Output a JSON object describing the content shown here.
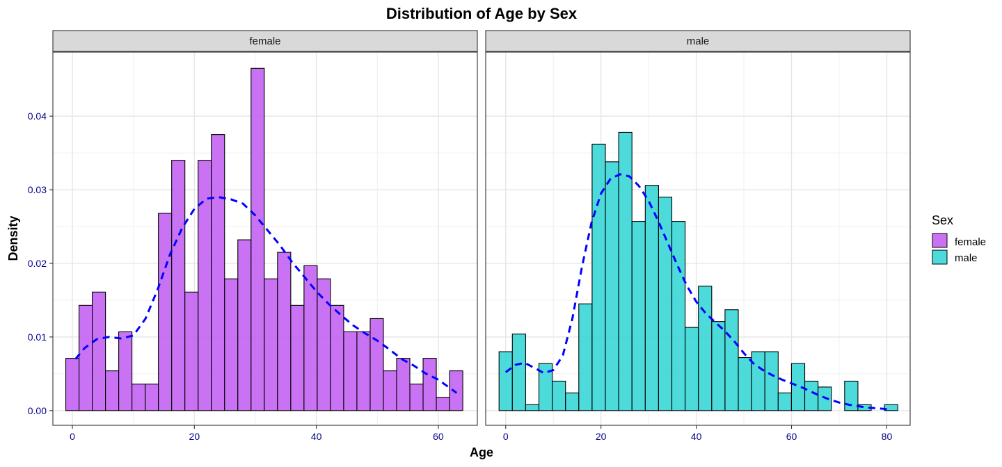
{
  "chart_data": {
    "type": "histogram",
    "title": "Distribution of Age by Sex",
    "xlabel": "Age",
    "ylabel": "Density",
    "grid": true,
    "legend_position": "right",
    "legend": {
      "title": "Sex",
      "entries": [
        {
          "label": "female",
          "color": "#bf5af2"
        },
        {
          "label": "male",
          "color": "#2ed3d3"
        }
      ]
    },
    "density_curve_color": "#0000ff",
    "bar_outline_color": "#000000",
    "y_ticks": [
      0.0,
      0.01,
      0.02,
      0.03,
      0.04
    ],
    "y_tick_labels": [
      "0.00",
      "0.01",
      "0.02",
      "0.03",
      "0.04"
    ],
    "ylim": [
      -0.002,
      0.0487
    ],
    "panels": [
      {
        "strip_label": "female",
        "color": "#bf5af2",
        "xlim": [
          -3.2,
          66.4
        ],
        "x_ticks": [
          0,
          20,
          40,
          60
        ],
        "bin_width": 2.17,
        "bins": [
          {
            "x": 0.0,
            "density": 0.0071
          },
          {
            "x": 2.17,
            "density": 0.0143
          },
          {
            "x": 4.34,
            "density": 0.0161
          },
          {
            "x": 6.51,
            "density": 0.0054
          },
          {
            "x": 8.68,
            "density": 0.0107
          },
          {
            "x": 10.85,
            "density": 0.0036
          },
          {
            "x": 13.02,
            "density": 0.0036
          },
          {
            "x": 15.19,
            "density": 0.0268
          },
          {
            "x": 17.36,
            "density": 0.034
          },
          {
            "x": 19.53,
            "density": 0.0161
          },
          {
            "x": 21.7,
            "density": 0.034
          },
          {
            "x": 23.87,
            "density": 0.0375
          },
          {
            "x": 26.04,
            "density": 0.0179
          },
          {
            "x": 28.21,
            "density": 0.0232
          },
          {
            "x": 30.38,
            "density": 0.0465
          },
          {
            "x": 32.55,
            "density": 0.0179
          },
          {
            "x": 34.72,
            "density": 0.0215
          },
          {
            "x": 36.89,
            "density": 0.0143
          },
          {
            "x": 39.06,
            "density": 0.0197
          },
          {
            "x": 41.23,
            "density": 0.0179
          },
          {
            "x": 43.4,
            "density": 0.0143
          },
          {
            "x": 45.57,
            "density": 0.0107
          },
          {
            "x": 47.74,
            "density": 0.0107
          },
          {
            "x": 49.91,
            "density": 0.0125
          },
          {
            "x": 52.08,
            "density": 0.0054
          },
          {
            "x": 54.25,
            "density": 0.0071
          },
          {
            "x": 56.42,
            "density": 0.0036
          },
          {
            "x": 58.59,
            "density": 0.0071
          },
          {
            "x": 60.76,
            "density": 0.0018
          },
          {
            "x": 62.93,
            "density": 0.0054
          }
        ],
        "density_curve": {
          "x": [
            0.5,
            2,
            4,
            6,
            8,
            10,
            12,
            14,
            16,
            18,
            20,
            22,
            24,
            26,
            28,
            30,
            32,
            34,
            36,
            38,
            40,
            42,
            44,
            46,
            48,
            50,
            52,
            54,
            56,
            58,
            60,
            62,
            63
          ],
          "y": [
            0.007,
            0.0085,
            0.0097,
            0.01,
            0.0098,
            0.0102,
            0.0125,
            0.0165,
            0.0212,
            0.0248,
            0.0274,
            0.0288,
            0.029,
            0.0287,
            0.0281,
            0.0265,
            0.0245,
            0.0225,
            0.0202,
            0.0182,
            0.0162,
            0.0145,
            0.013,
            0.0116,
            0.0105,
            0.0095,
            0.0083,
            0.007,
            0.0061,
            0.005,
            0.0042,
            0.003,
            0.0024
          ]
        }
      },
      {
        "strip_label": "male",
        "color": "#2ed3d3",
        "xlim": [
          -4.2,
          84.9
        ],
        "x_ticks": [
          0,
          20,
          40,
          60,
          80
        ],
        "bin_width": 2.79,
        "bins": [
          {
            "x": 0.0,
            "density": 0.008
          },
          {
            "x": 2.79,
            "density": 0.0104
          },
          {
            "x": 5.58,
            "density": 0.0008
          },
          {
            "x": 8.37,
            "density": 0.0064
          },
          {
            "x": 11.16,
            "density": 0.004
          },
          {
            "x": 13.95,
            "density": 0.0024
          },
          {
            "x": 16.74,
            "density": 0.0145
          },
          {
            "x": 19.53,
            "density": 0.0362
          },
          {
            "x": 22.32,
            "density": 0.0338
          },
          {
            "x": 25.11,
            "density": 0.0378
          },
          {
            "x": 27.9,
            "density": 0.0257
          },
          {
            "x": 30.69,
            "density": 0.0306
          },
          {
            "x": 33.48,
            "density": 0.029
          },
          {
            "x": 36.27,
            "density": 0.0257
          },
          {
            "x": 39.06,
            "density": 0.0113
          },
          {
            "x": 41.85,
            "density": 0.0169
          },
          {
            "x": 44.64,
            "density": 0.0121
          },
          {
            "x": 47.43,
            "density": 0.0137
          },
          {
            "x": 50.22,
            "density": 0.0072
          },
          {
            "x": 53.01,
            "density": 0.008
          },
          {
            "x": 55.8,
            "density": 0.008
          },
          {
            "x": 58.59,
            "density": 0.0024
          },
          {
            "x": 61.38,
            "density": 0.0064
          },
          {
            "x": 64.17,
            "density": 0.004
          },
          {
            "x": 66.96,
            "density": 0.0032
          },
          {
            "x": 69.75,
            "density": 0.0
          },
          {
            "x": 72.54,
            "density": 0.004
          },
          {
            "x": 75.33,
            "density": 0.0008
          },
          {
            "x": 78.12,
            "density": 0.0
          },
          {
            "x": 80.91,
            "density": 0.0008
          }
        ],
        "density_curve": {
          "x": [
            0,
            2,
            4,
            6,
            8,
            10,
            12,
            14,
            16,
            18,
            20,
            22,
            24,
            26,
            28,
            30,
            32,
            34,
            36,
            38,
            40,
            42,
            44,
            46,
            48,
            50,
            52,
            54,
            56,
            58,
            60,
            62,
            64,
            66,
            68,
            70,
            72,
            74,
            76,
            78,
            80
          ],
          "y": [
            0.0052,
            0.0062,
            0.0065,
            0.0058,
            0.0051,
            0.0055,
            0.0075,
            0.0125,
            0.0195,
            0.0255,
            0.0295,
            0.0315,
            0.0321,
            0.0318,
            0.0305,
            0.0285,
            0.0258,
            0.0228,
            0.0198,
            0.017,
            0.0148,
            0.0132,
            0.012,
            0.0108,
            0.0094,
            0.0078,
            0.0064,
            0.0055,
            0.0048,
            0.0042,
            0.0037,
            0.0032,
            0.0026,
            0.002,
            0.0015,
            0.0011,
            0.0008,
            0.0006,
            0.0004,
            0.0003,
            0.0002
          ]
        }
      }
    ]
  }
}
